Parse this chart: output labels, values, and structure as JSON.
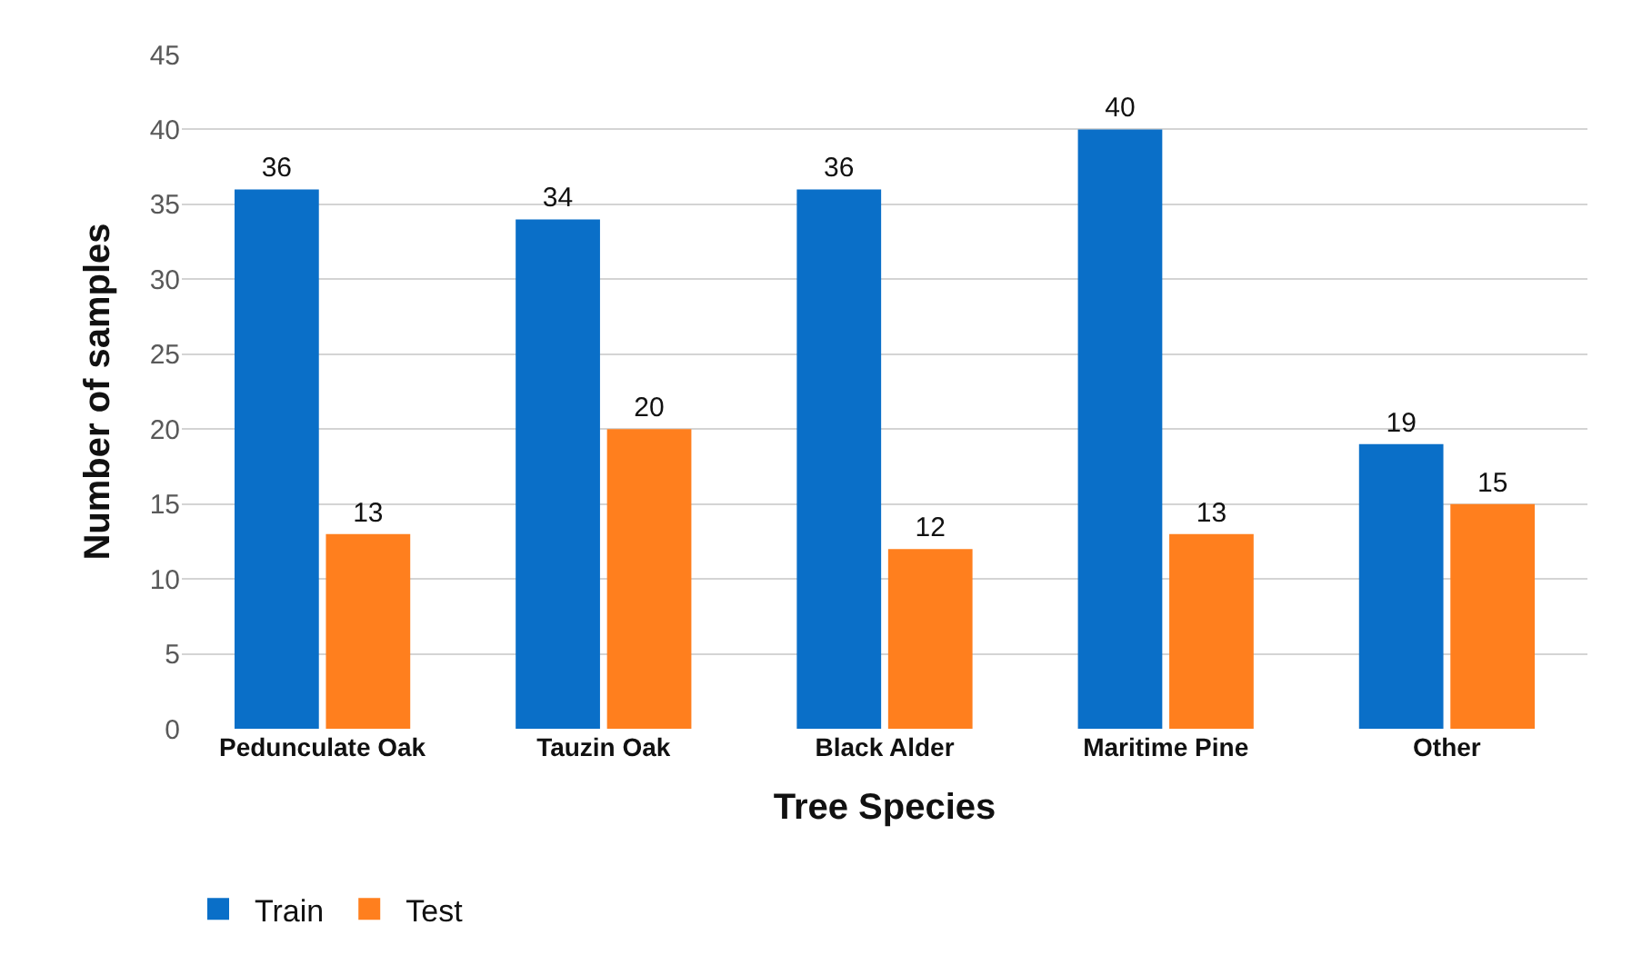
{
  "chart_data": {
    "type": "bar",
    "xlabel": "Tree Species",
    "ylabel": "Number of samples",
    "categories": [
      "Pedunculate Oak",
      "Tauzin Oak",
      "Black Alder",
      "Maritime Pine",
      "Other"
    ],
    "series": [
      {
        "name": "Train",
        "color": "#0a6fc8",
        "values": [
          36,
          34,
          36,
          40,
          19
        ]
      },
      {
        "name": "Test",
        "color": "#ff7f1e",
        "values": [
          13,
          20,
          12,
          13,
          15
        ]
      }
    ],
    "ylim": [
      0,
      45
    ],
    "yticks": [
      0,
      5,
      10,
      15,
      20,
      25,
      30,
      35,
      40,
      45
    ],
    "grid": "y",
    "legend": "bottom left",
    "data_labels": true
  }
}
